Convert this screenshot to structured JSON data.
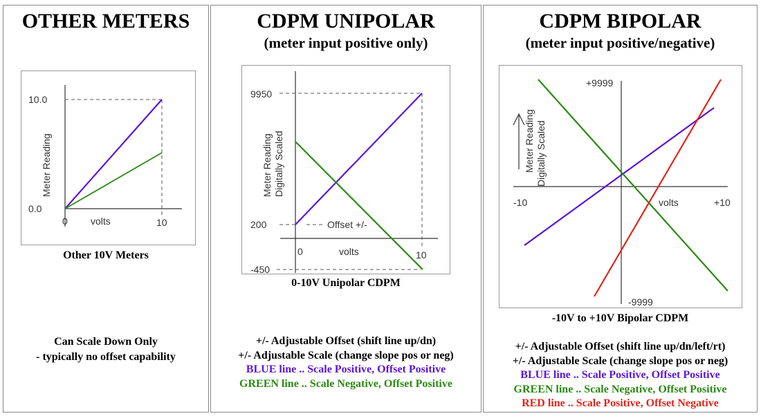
{
  "colors": {
    "blue": "#5a16d8",
    "green": "#2a8a12",
    "red": "#e0261c",
    "axis": "#333333"
  },
  "panels": {
    "other": {
      "title": "OTHER METERS",
      "graph": {
        "y_top": "10.0",
        "y_bottom": "0.0",
        "x_start": "0",
        "x_end": "10",
        "x_label": "volts",
        "y_label": "Meter Reading"
      },
      "caption": "Other 10V Meters",
      "notes": [
        "Can Scale Down Only",
        "- typically no offset capability"
      ]
    },
    "unipolar": {
      "title": "CDPM UNIPOLAR",
      "subtitle": "(meter input positive only)",
      "graph": {
        "y_top": "9950",
        "y_offset": "200",
        "y_bottom": "-450",
        "x_start": "0",
        "x_end": "10",
        "x_label": "volts",
        "offset_label": "Offset +/-",
        "y_label_1": "Meter Reading",
        "y_label_2": "Digitally Scaled"
      },
      "caption": "0-10V Unipolar CDPM",
      "notes": {
        "line1": "+/- Adjustable Offset (shift line up/dn)",
        "line2": "+/- Adjustable Scale (change slope pos or neg)",
        "blue": "BLUE line .. Scale Positive, Offset Positive",
        "green": "GREEN line .. Scale Negative, Offset Positive"
      }
    },
    "bipolar": {
      "title": "CDPM BIPOLAR",
      "subtitle": "(meter input positive/negative)",
      "graph": {
        "y_top": "+9999",
        "y_bottom": "-9999",
        "x_left": "-10",
        "x_right": "+10",
        "x_label": "volts",
        "y_label_1": "Meter Reading",
        "y_label_2": "Digitally Scaled"
      },
      "caption": "-10V to +10V Bipolar CDPM",
      "notes": {
        "line1": "+/- Adjustable Offset (shift line up/dn/left/rt)",
        "line2": "+/- Adjustable Scale (change slope pos or neg)",
        "blue": "BLUE line .. Scale Positive, Offset Positive",
        "green": "GREEN line .. Scale Negative, Offset Positive",
        "red": "RED line .. Scale Positive, Offset Negative"
      }
    }
  }
}
